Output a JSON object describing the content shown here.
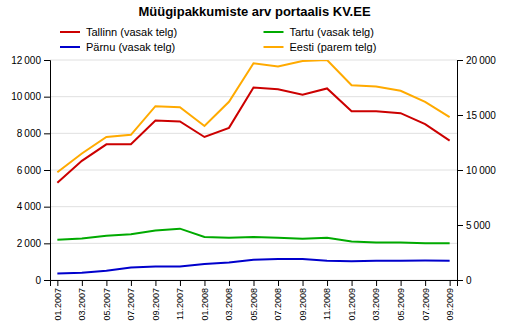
{
  "chart_data": {
    "type": "line",
    "title": "Müügipakkumiste arv portaalis KV.EE",
    "categories": [
      "01.2007",
      "03.2007",
      "05.2007",
      "07.2007",
      "09.2007",
      "11.2007",
      "01.2008",
      "03.2008",
      "05.2008",
      "07.2008",
      "09.2008",
      "11.2008",
      "01.2009",
      "03.2009",
      "05.2009",
      "07.2009",
      "09.2009"
    ],
    "series": [
      {
        "name": "Tallinn (vasak telg)",
        "color": "#cc0000",
        "values": [
          5300,
          6500,
          7400,
          7400,
          8700,
          8650,
          7800,
          8300,
          10500,
          10400,
          10100,
          10450,
          9200,
          9200,
          9100,
          8500,
          7600
        ]
      },
      {
        "name": "Tartu (vasak telg)",
        "color": "#00aa00",
        "values": [
          2200,
          2270,
          2420,
          2500,
          2700,
          2800,
          2350,
          2300,
          2350,
          2300,
          2250,
          2300,
          2100,
          2050,
          2050,
          2000,
          2000
        ]
      },
      {
        "name": "Pärnu (vasak telg)",
        "color": "#0000cc",
        "values": [
          350,
          390,
          510,
          680,
          730,
          730,
          870,
          950,
          1100,
          1150,
          1150,
          1050,
          1020,
          1050,
          1050,
          1060,
          1050
        ]
      },
      {
        "name": "Eesti (parem telg)",
        "color": "#ffaa00",
        "axis": "y2",
        "values": [
          9800,
          11500,
          13000,
          13200,
          15800,
          15700,
          14000,
          16200,
          19700,
          19400,
          19900,
          20000,
          17700,
          17600,
          17200,
          16200,
          14800
        ]
      }
    ],
    "ylim": [
      0,
      12000
    ],
    "yticks": [
      0,
      {
        "value": 2000,
        "label": "2 000"
      },
      {
        "value": 4000,
        "label": "4 000"
      },
      {
        "value": 6000,
        "label": "6 000"
      },
      {
        "value": 8000,
        "label": "8 000"
      },
      {
        "value": 10000,
        "label": "10 000"
      },
      {
        "value": 12000,
        "label": "12 000"
      }
    ],
    "y2lim": [
      0,
      20000
    ],
    "y2ticks": [
      0,
      {
        "value": 5000,
        "label": "5 000"
      },
      {
        "value": 10000,
        "label": "10 000"
      },
      {
        "value": 15000,
        "label": "15 000"
      },
      {
        "value": 20000,
        "label": "20 000"
      }
    ],
    "grid": true,
    "legend": "top"
  }
}
